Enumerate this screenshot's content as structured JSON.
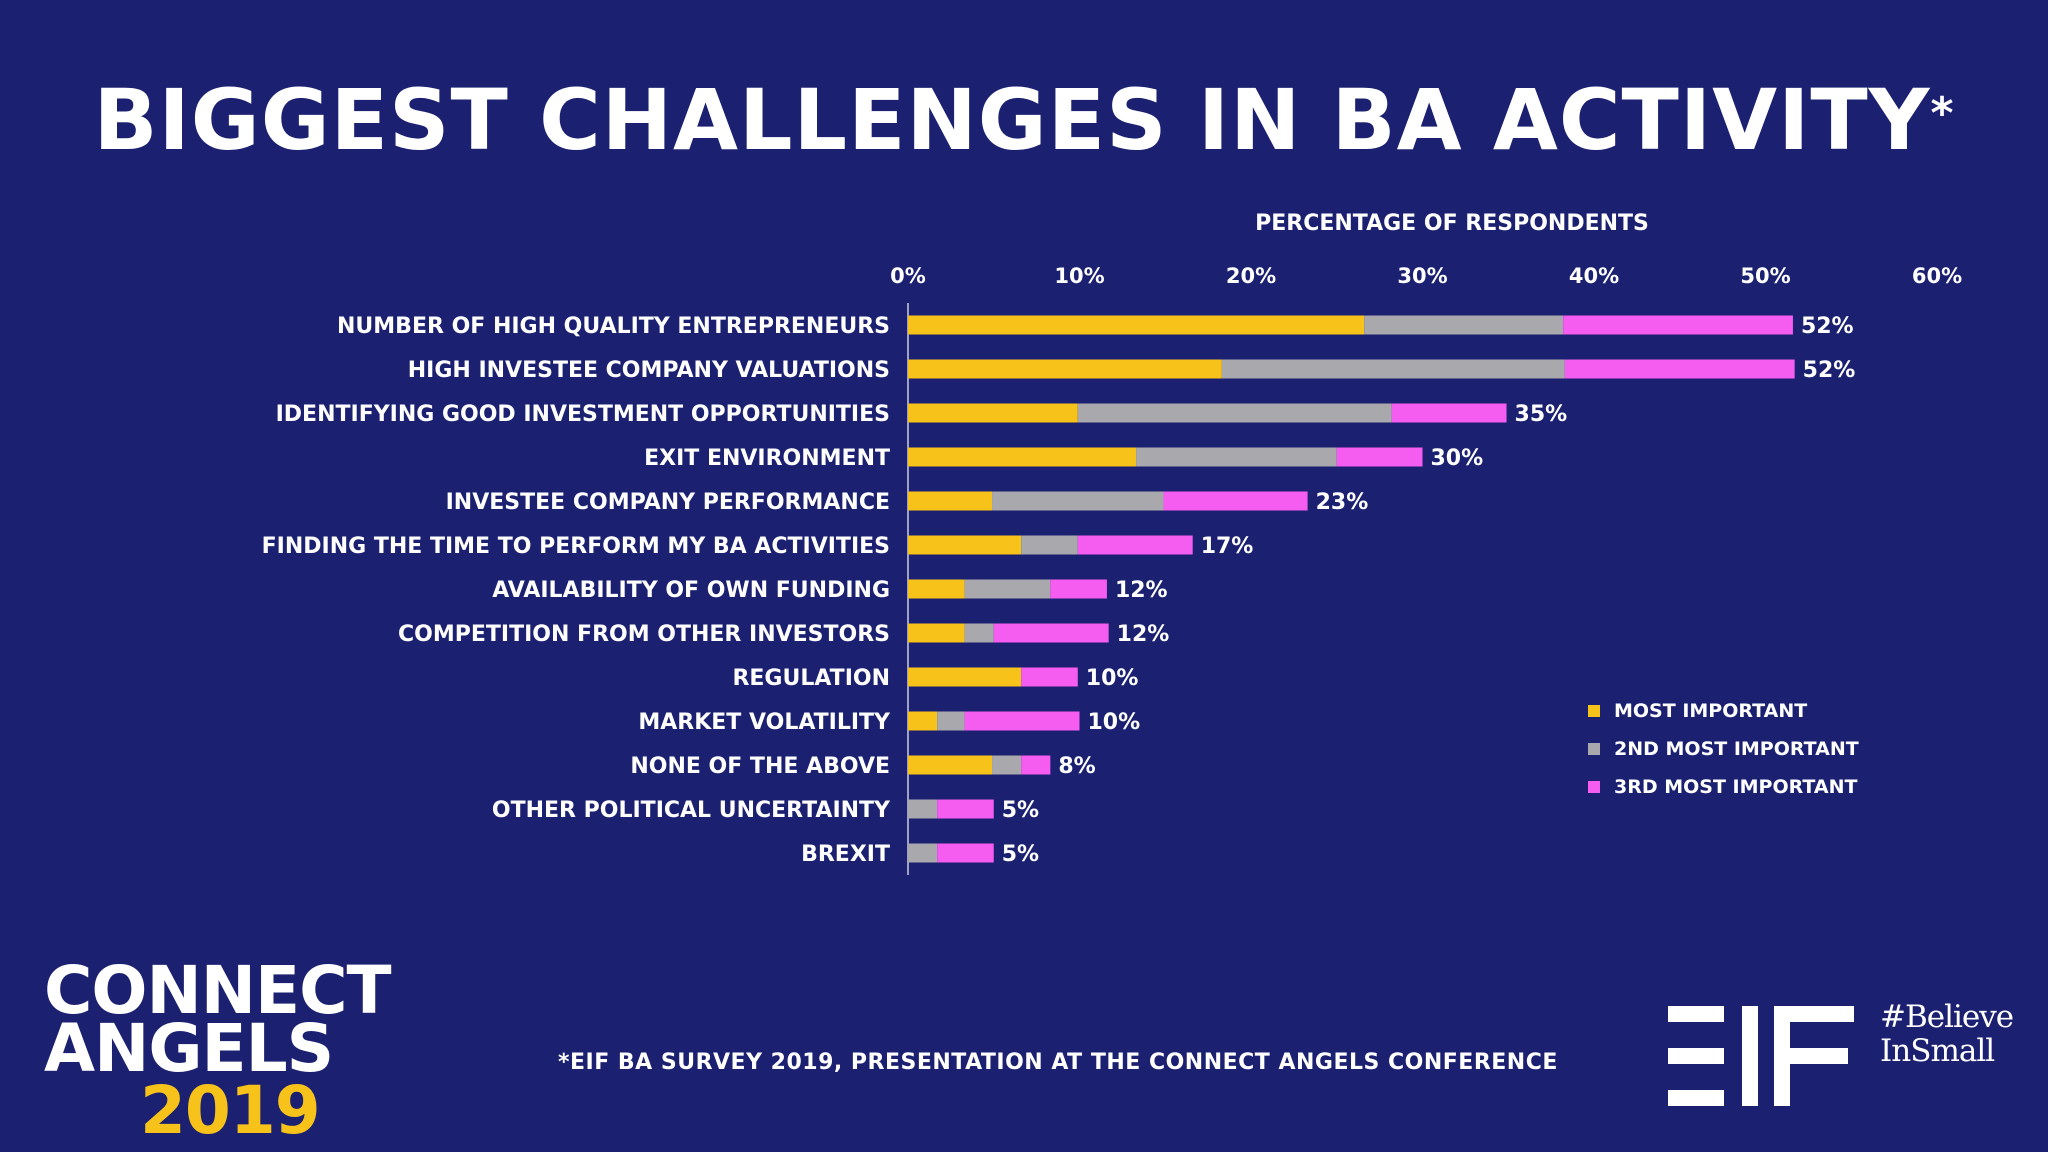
{
  "title": "BIGGEST CHALLENGES IN BA ACTIVITY",
  "title_mark": "*",
  "footnote": "*EIF BA SURVEY 2019, PRESENTATION AT THE CONNECT ANGELS CONFERENCE",
  "logo": {
    "line1": "CONNECT",
    "line2": "ANGELS",
    "year": "2019"
  },
  "hashtag": {
    "line1": "#Believe",
    "line2": "InSmall"
  },
  "colors": {
    "background": "#1b2070",
    "most": "#f7c21a",
    "second": "#a8a8ad",
    "third": "#f55cf0"
  },
  "chart_data": {
    "type": "bar",
    "orientation": "horizontal",
    "stacked": true,
    "xlabel": "PERCENTAGE OF RESPONDENTS",
    "xlim": [
      0,
      60
    ],
    "xticks": [
      "0%",
      "10%",
      "20%",
      "30%",
      "40%",
      "50%",
      "60%"
    ],
    "grid": false,
    "legend_position": "right",
    "categories": [
      "NUMBER OF HIGH QUALITY ENTREPRENEURS",
      "HIGH INVESTEE COMPANY VALUATIONS",
      "IDENTIFYING GOOD INVESTMENT OPPORTUNITIES",
      "EXIT ENVIRONMENT",
      "INVESTEE COMPANY PERFORMANCE",
      "FINDING THE TIME TO PERFORM MY BA ACTIVITIES",
      "AVAILABILITY OF OWN FUNDING",
      "COMPETITION FROM OTHER INVESTORS",
      "REGULATION",
      "MARKET VOLATILITY",
      "NONE OF THE ABOVE",
      "OTHER POLITICAL UNCERTAINTY",
      "BREXIT"
    ],
    "series": [
      {
        "name": "MOST IMPORTANT",
        "values": [
          26.6,
          18.3,
          9.9,
          13.3,
          4.9,
          6.6,
          3.3,
          3.3,
          6.6,
          1.7,
          4.9,
          0,
          0
        ]
      },
      {
        "name": "2ND MOST IMPORTANT",
        "values": [
          11.6,
          20.0,
          18.3,
          11.7,
          10.0,
          3.3,
          5.0,
          1.7,
          0,
          1.6,
          1.7,
          1.7,
          1.7
        ]
      },
      {
        "name": "3RD MOST IMPORTANT",
        "values": [
          13.4,
          13.4,
          6.7,
          5.0,
          8.4,
          6.7,
          3.3,
          6.7,
          3.3,
          6.7,
          1.7,
          3.3,
          3.3
        ]
      }
    ],
    "totals": [
      "52%",
      "52%",
      "35%",
      "30%",
      "23%",
      "17%",
      "12%",
      "12%",
      "10%",
      "10%",
      "8%",
      "5%",
      "5%"
    ]
  }
}
